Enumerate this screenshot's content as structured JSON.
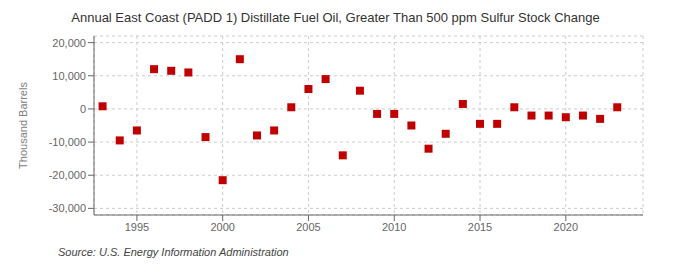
{
  "chart_data": {
    "type": "scatter",
    "title": "Annual East Coast (PADD 1) Distillate Fuel Oil, Greater Than 500 ppm Sulfur Stock Change",
    "ylabel": "Thousand Barrels",
    "annotation": "Source: U.S. Energy Information Administration",
    "x": [
      1993,
      1994,
      1995,
      1996,
      1997,
      1998,
      1999,
      2000,
      2001,
      2002,
      2003,
      2004,
      2005,
      2006,
      2007,
      2008,
      2009,
      2010,
      2011,
      2012,
      2013,
      2014,
      2015,
      2016,
      2017,
      2018,
      2019,
      2020,
      2021,
      2022,
      2023
    ],
    "values": [
      800,
      -9500,
      -6500,
      12000,
      11500,
      11000,
      -8500,
      -21500,
      15000,
      -8000,
      -6500,
      500,
      6000,
      9000,
      -14000,
      5500,
      -1500,
      -1500,
      -5000,
      -12000,
      -7500,
      1500,
      -4500,
      -4500,
      500,
      -2000,
      -2000,
      -2500,
      -2000,
      -3000,
      500
    ],
    "color": "#c00000",
    "marker": "square",
    "xlim": [
      1992.5,
      2024.5
    ],
    "xticks": [
      1995,
      2000,
      2005,
      2010,
      2015,
      2020
    ],
    "ylim": [
      -32000,
      22000
    ],
    "yticks": [
      {
        "value": -30000,
        "label": "-30,000"
      },
      {
        "value": -20000,
        "label": "-20,000"
      },
      {
        "value": -10000,
        "label": "-10,000"
      },
      0,
      {
        "value": 10000,
        "label": "10,000"
      },
      {
        "value": 20000,
        "label": "20,000"
      }
    ],
    "grid": true
  }
}
